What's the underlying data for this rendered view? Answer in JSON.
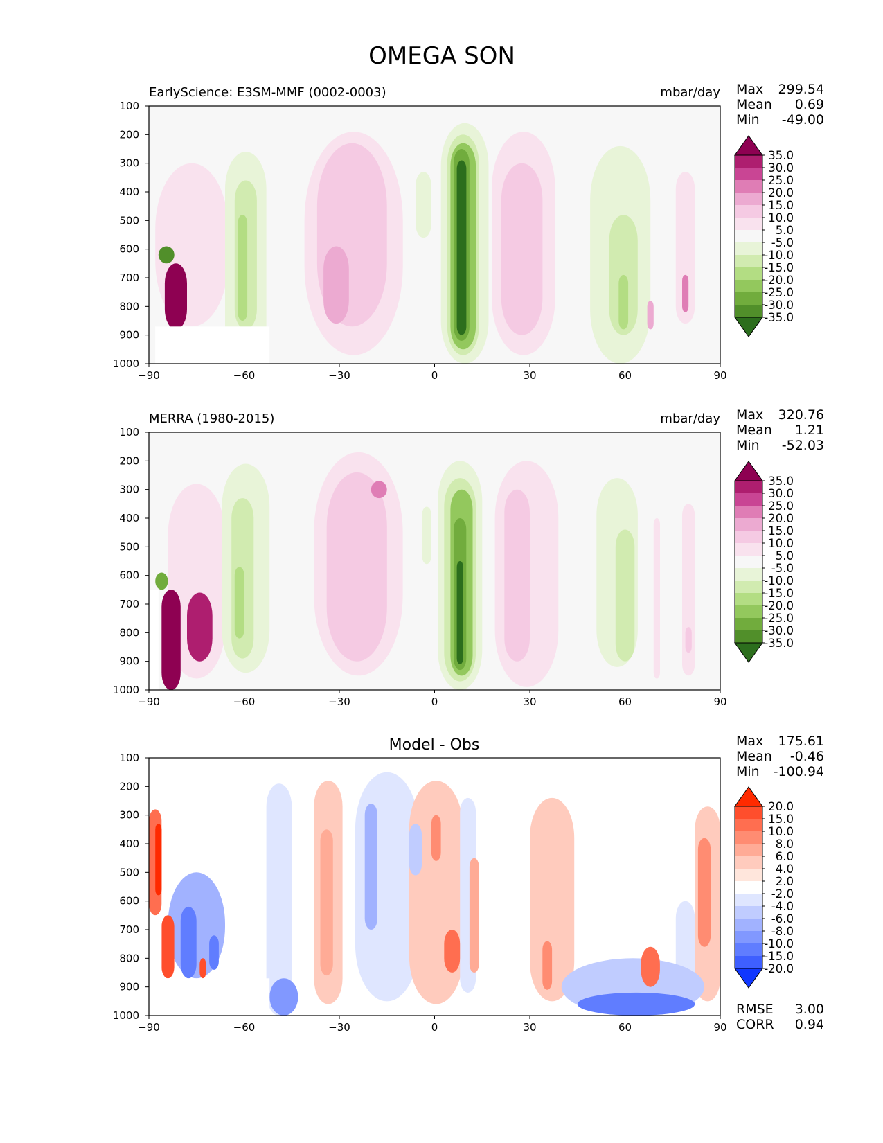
{
  "title": "OMEGA SON",
  "panels": [
    {
      "id": "test",
      "title_left": "EarlyScience: E3SM-MMF (0002-0003)",
      "title_center": "",
      "title_right": "mbar/day",
      "stats": [
        {
          "label": "Max",
          "value": "299.54"
        },
        {
          "label": "Mean",
          "value": "0.69"
        },
        {
          "label": "Min",
          "value": "-49.00"
        }
      ],
      "extra_stats": [],
      "colorbar": {
        "labels": [
          "35.0",
          "30.0",
          "25.0",
          "20.0",
          "15.0",
          "10.0",
          "5.0",
          "-5.0",
          "-10.0",
          "-15.0",
          "-20.0",
          "-25.0",
          "-30.0",
          "-35.0"
        ],
        "colors": [
          "#8e0152",
          "#ae1e6f",
          "#c94594",
          "#df7db5",
          "#ecaad1",
          "#f5cae3",
          "#f9e2ee",
          "#f7f7f7",
          "#e8f4d8",
          "#d1ebb0",
          "#b3dd83",
          "#93c85d",
          "#71ac3d",
          "#518f2a",
          "#2c6e1d"
        ]
      }
    },
    {
      "id": "reference",
      "title_left": "MERRA (1980-2015)",
      "title_center": "",
      "title_right": "mbar/day",
      "stats": [
        {
          "label": "Max",
          "value": "320.76"
        },
        {
          "label": "Mean",
          "value": "1.21"
        },
        {
          "label": "Min",
          "value": "-52.03"
        }
      ],
      "extra_stats": [],
      "colorbar": {
        "labels": [
          "35.0",
          "30.0",
          "25.0",
          "20.0",
          "15.0",
          "10.0",
          "5.0",
          "-5.0",
          "-10.0",
          "-15.0",
          "-20.0",
          "-25.0",
          "-30.0",
          "-35.0"
        ],
        "colors": [
          "#8e0152",
          "#ae1e6f",
          "#c94594",
          "#df7db5",
          "#ecaad1",
          "#f5cae3",
          "#f9e2ee",
          "#f7f7f7",
          "#e8f4d8",
          "#d1ebb0",
          "#b3dd83",
          "#93c85d",
          "#71ac3d",
          "#518f2a",
          "#2c6e1d"
        ]
      }
    },
    {
      "id": "diff",
      "title_left": "",
      "title_center": "Model - Obs",
      "title_right": "",
      "stats": [
        {
          "label": "Max",
          "value": "175.61"
        },
        {
          "label": "Mean",
          "value": "-0.46"
        },
        {
          "label": "Min",
          "value": "-100.94"
        }
      ],
      "extra_stats": [
        {
          "label": "RMSE",
          "value": "3.00"
        },
        {
          "label": "CORR",
          "value": "0.94"
        }
      ],
      "colorbar": {
        "labels": [
          "20.0",
          "15.0",
          "10.0",
          "8.0",
          "6.0",
          "4.0",
          "2.0",
          "-2.0",
          "-4.0",
          "-6.0",
          "-8.0",
          "-10.0",
          "-15.0",
          "-20.0"
        ],
        "colors": [
          "#ff2a00",
          "#ff4e2c",
          "#ff6e50",
          "#ff8c72",
          "#ffab96",
          "#ffcbbd",
          "#ffe6dc",
          "#ffffff",
          "#dfe6ff",
          "#c0ccff",
          "#a1b2ff",
          "#8198ff",
          "#607dff",
          "#3e5fff",
          "#1037ff"
        ]
      }
    }
  ],
  "chart_data": {
    "type": "heatmap",
    "title": "OMEGA SON",
    "xlabel": "",
    "ylabel": "",
    "x_ticks": [
      "−90",
      "−60",
      "−30",
      "0",
      "30",
      "60",
      "90"
    ],
    "y_ticks": [
      "100",
      "200",
      "300",
      "400",
      "500",
      "600",
      "700",
      "800",
      "900",
      "1000"
    ],
    "xlim": [
      -90,
      90
    ],
    "ylim": [
      1000,
      100
    ],
    "units": "mbar/day",
    "description_note": "zonal-mean vertical velocity (lat vs pressure); fields approximated by contour blobs",
    "fields": {
      "test": [
        {
          "lat": [
            -85,
            -78
          ],
          "p": [
            650,
            880
          ],
          "v": 40
        },
        {
          "lat": [
            -87,
            -82
          ],
          "p": [
            590,
            650
          ],
          "v": -35
        },
        {
          "lat": [
            -88,
            -65
          ],
          "p": [
            300,
            870
          ],
          "v": 6
        },
        {
          "lat": [
            -66,
            -53
          ],
          "p": [
            260,
            1000
          ],
          "v": -6
        },
        {
          "lat": [
            -63,
            -56
          ],
          "p": [
            360,
            880
          ],
          "v": -12
        },
        {
          "lat": [
            -62,
            -59
          ],
          "p": [
            480,
            850
          ],
          "v": -18
        },
        {
          "lat": [
            -41,
            -10
          ],
          "p": [
            190,
            970
          ],
          "v": 6
        },
        {
          "lat": [
            -37,
            -15
          ],
          "p": [
            230,
            870
          ],
          "v": 12
        },
        {
          "lat": [
            -35,
            -27
          ],
          "p": [
            590,
            860
          ],
          "v": 18
        },
        {
          "lat": [
            -6,
            -1
          ],
          "p": [
            330,
            560
          ],
          "v": -6
        },
        {
          "lat": [
            2,
            17
          ],
          "p": [
            160,
            1000
          ],
          "v": -8
        },
        {
          "lat": [
            4,
            14
          ],
          "p": [
            200,
            970
          ],
          "v": -15
        },
        {
          "lat": [
            5,
            13
          ],
          "p": [
            230,
            950
          ],
          "v": -22
        },
        {
          "lat": [
            6,
            11
          ],
          "p": [
            250,
            920
          ],
          "v": -30
        },
        {
          "lat": [
            7,
            10
          ],
          "p": [
            290,
            900
          ],
          "v": -40
        },
        {
          "lat": [
            18,
            38
          ],
          "p": [
            190,
            970
          ],
          "v": 6
        },
        {
          "lat": [
            21,
            34
          ],
          "p": [
            300,
            900
          ],
          "v": 12
        },
        {
          "lat": [
            49,
            68
          ],
          "p": [
            240,
            1000
          ],
          "v": -6
        },
        {
          "lat": [
            55,
            64
          ],
          "p": [
            480,
            900
          ],
          "v": -12
        },
        {
          "lat": [
            58,
            61
          ],
          "p": [
            690,
            880
          ],
          "v": -18
        },
        {
          "lat": [
            67,
            69
          ],
          "p": [
            780,
            880
          ],
          "v": 15
        },
        {
          "lat": [
            76,
            82
          ],
          "p": [
            330,
            860
          ],
          "v": 6
        },
        {
          "lat": [
            78,
            80
          ],
          "p": [
            690,
            820
          ],
          "v": 20
        }
      ],
      "reference": [
        {
          "lat": [
            -86,
            -80
          ],
          "p": [
            650,
            1000
          ],
          "v": 40
        },
        {
          "lat": [
            -78,
            -70
          ],
          "p": [
            660,
            900
          ],
          "v": 30
        },
        {
          "lat": [
            -88,
            -84
          ],
          "p": [
            590,
            650
          ],
          "v": -30
        },
        {
          "lat": [
            -84,
            -66
          ],
          "p": [
            280,
            960
          ],
          "v": 6
        },
        {
          "lat": [
            -67,
            -52
          ],
          "p": [
            210,
            940
          ],
          "v": -6
        },
        {
          "lat": [
            -64,
            -57
          ],
          "p": [
            330,
            890
          ],
          "v": -12
        },
        {
          "lat": [
            -63,
            -60
          ],
          "p": [
            570,
            820
          ],
          "v": -18
        },
        {
          "lat": [
            -38,
            -10
          ],
          "p": [
            170,
            950
          ],
          "v": 6
        },
        {
          "lat": [
            -34,
            -15
          ],
          "p": [
            240,
            900
          ],
          "v": 12
        },
        {
          "lat": [
            -20,
            -15
          ],
          "p": [
            270,
            330
          ],
          "v": 20
        },
        {
          "lat": [
            -4,
            -1
          ],
          "p": [
            360,
            560
          ],
          "v": -6
        },
        {
          "lat": [
            1,
            15
          ],
          "p": [
            200,
            1000
          ],
          "v": -8
        },
        {
          "lat": [
            3,
            13
          ],
          "p": [
            260,
            970
          ],
          "v": -15
        },
        {
          "lat": [
            5,
            12
          ],
          "p": [
            300,
            950
          ],
          "v": -22
        },
        {
          "lat": [
            6,
            10
          ],
          "p": [
            400,
            930
          ],
          "v": -30
        },
        {
          "lat": [
            7,
            9
          ],
          "p": [
            550,
            910
          ],
          "v": -40
        },
        {
          "lat": [
            19,
            39
          ],
          "p": [
            200,
            990
          ],
          "v": 6
        },
        {
          "lat": [
            22,
            30
          ],
          "p": [
            300,
            900
          ],
          "v": 12
        },
        {
          "lat": [
            51,
            64
          ],
          "p": [
            260,
            920
          ],
          "v": -6
        },
        {
          "lat": [
            57,
            63
          ],
          "p": [
            440,
            900
          ],
          "v": -12
        },
        {
          "lat": [
            69,
            71
          ],
          "p": [
            400,
            960
          ],
          "v": 6
        },
        {
          "lat": [
            78,
            82
          ],
          "p": [
            350,
            950
          ],
          "v": 6
        },
        {
          "lat": [
            79,
            81
          ],
          "p": [
            780,
            870
          ],
          "v": 12
        }
      ],
      "diff": [
        {
          "lat": [
            -90,
            -86
          ],
          "p": [
            280,
            650
          ],
          "v": 12
        },
        {
          "lat": [
            -88,
            -86
          ],
          "p": [
            330,
            580
          ],
          "v": 22
        },
        {
          "lat": [
            -86,
            -82
          ],
          "p": [
            650,
            870
          ],
          "v": 18
        },
        {
          "lat": [
            -84,
            -66
          ],
          "p": [
            500,
            870
          ],
          "v": -8
        },
        {
          "lat": [
            -80,
            -75
          ],
          "p": [
            620,
            870
          ],
          "v": -14
        },
        {
          "lat": [
            -71,
            -68
          ],
          "p": [
            720,
            840
          ],
          "v": -14
        },
        {
          "lat": [
            -74,
            -72
          ],
          "p": [
            800,
            870
          ],
          "v": 18
        },
        {
          "lat": [
            -53,
            -45
          ],
          "p": [
            190,
            1000
          ],
          "v": -4
        },
        {
          "lat": [
            -52,
            -43
          ],
          "p": [
            870,
            1000
          ],
          "v": -9
        },
        {
          "lat": [
            -38,
            -29
          ],
          "p": [
            180,
            960
          ],
          "v": 4
        },
        {
          "lat": [
            -36,
            -32
          ],
          "p": [
            350,
            860
          ],
          "v": 7
        },
        {
          "lat": [
            -25,
            -5
          ],
          "p": [
            150,
            950
          ],
          "v": -4
        },
        {
          "lat": [
            -22,
            -18
          ],
          "p": [
            260,
            700
          ],
          "v": -7
        },
        {
          "lat": [
            -8,
            -4
          ],
          "p": [
            330,
            510
          ],
          "v": -6
        },
        {
          "lat": [
            -8,
            9
          ],
          "p": [
            180,
            960
          ],
          "v": 4
        },
        {
          "lat": [
            -1,
            2
          ],
          "p": [
            300,
            460
          ],
          "v": 9
        },
        {
          "lat": [
            3,
            8
          ],
          "p": [
            700,
            850
          ],
          "v": 12
        },
        {
          "lat": [
            8,
            13
          ],
          "p": [
            240,
            920
          ],
          "v": -4
        },
        {
          "lat": [
            11,
            14
          ],
          "p": [
            450,
            850
          ],
          "v": 6
        },
        {
          "lat": [
            30,
            44
          ],
          "p": [
            240,
            950
          ],
          "v": 4
        },
        {
          "lat": [
            34,
            37
          ],
          "p": [
            740,
            910
          ],
          "v": 8
        },
        {
          "lat": [
            40,
            85
          ],
          "p": [
            800,
            1000
          ],
          "v": -5
        },
        {
          "lat": [
            45,
            82
          ],
          "p": [
            920,
            1000
          ],
          "v": -12
        },
        {
          "lat": [
            65,
            71
          ],
          "p": [
            760,
            900
          ],
          "v": 14
        },
        {
          "lat": [
            76,
            82
          ],
          "p": [
            600,
            980
          ],
          "v": -4
        },
        {
          "lat": [
            82,
            90
          ],
          "p": [
            270,
            950
          ],
          "v": 4
        },
        {
          "lat": [
            83,
            87
          ],
          "p": [
            380,
            760
          ],
          "v": 8
        }
      ]
    },
    "missing_regions": {
      "test": [
        {
          "lat": [
            -88,
            -52
          ],
          "p": [
            870,
            1000
          ]
        }
      ],
      "reference": [
        {
          "lat": [
            -90,
            -87
          ],
          "p": [
            650,
            1000
          ]
        }
      ],
      "diff": [
        {
          "lat": [
            -88,
            -52
          ],
          "p": [
            870,
            1000
          ]
        },
        {
          "lat": [
            -90,
            -86
          ],
          "p": [
            650,
            870
          ]
        }
      ]
    }
  }
}
